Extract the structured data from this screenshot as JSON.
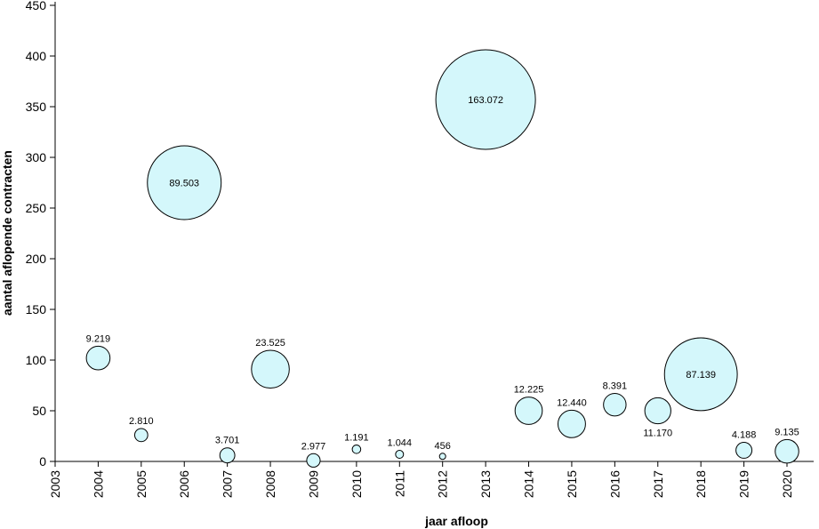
{
  "chart_data": {
    "type": "bubble",
    "xlabel": "jaar afloop",
    "ylabel": "aantal aflopende contracten",
    "xlim": [
      2003,
      2020
    ],
    "ylim": [
      0,
      450
    ],
    "x_ticks": [
      2003,
      2004,
      2005,
      2006,
      2007,
      2008,
      2009,
      2010,
      2011,
      2012,
      2013,
      2014,
      2015,
      2016,
      2017,
      2018,
      2019,
      2020
    ],
    "y_ticks": [
      0,
      50,
      100,
      150,
      200,
      250,
      300,
      350,
      400,
      450
    ],
    "bubble_color": "#d4f7fb",
    "points": [
      {
        "x": 2004,
        "y": 102,
        "size": 9219,
        "label": "9.219"
      },
      {
        "x": 2005,
        "y": 26,
        "size": 2810,
        "label": "2.810"
      },
      {
        "x": 2006,
        "y": 275,
        "size": 89503,
        "label": "89.503"
      },
      {
        "x": 2007,
        "y": 6,
        "size": 3701,
        "label": "3.701"
      },
      {
        "x": 2008,
        "y": 91,
        "size": 23525,
        "label": "23.525"
      },
      {
        "x": 2009,
        "y": 1,
        "size": 2977,
        "label": "2.977"
      },
      {
        "x": 2010,
        "y": 12,
        "size": 1191,
        "label": "1.191"
      },
      {
        "x": 2011,
        "y": 7,
        "size": 1044,
        "label": "1.044"
      },
      {
        "x": 2012,
        "y": 5,
        "size": 456,
        "label": "456"
      },
      {
        "x": 2013,
        "y": 357,
        "size": 163072,
        "label": "163.072"
      },
      {
        "x": 2014,
        "y": 50,
        "size": 12225,
        "label": "12.225"
      },
      {
        "x": 2015,
        "y": 37,
        "size": 12440,
        "label": "12.440"
      },
      {
        "x": 2016,
        "y": 56,
        "size": 8391,
        "label": "8.391"
      },
      {
        "x": 2017,
        "y": 50,
        "size": 11170,
        "label": "11.170"
      },
      {
        "x": 2018,
        "y": 86,
        "size": 87139,
        "label": "87.139"
      },
      {
        "x": 2019,
        "y": 11,
        "size": 4188,
        "label": "4.188"
      },
      {
        "x": 2020,
        "y": 10,
        "size": 9135,
        "label": "9.135"
      }
    ]
  }
}
